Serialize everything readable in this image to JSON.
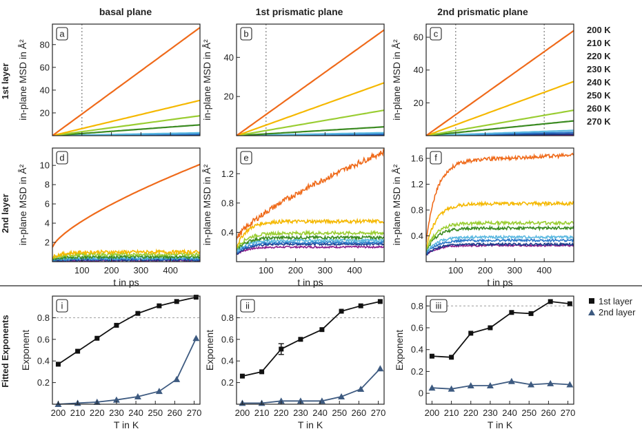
{
  "figure": {
    "column_titles": [
      "basal plane",
      "1st prismatic plane",
      "2nd prismatic plane"
    ],
    "row_labels": [
      "1st layer",
      "2nd layer",
      "Fitted Exponents"
    ],
    "temperature_legend": [
      {
        "label": "200 K",
        "color": "#8b1a8b"
      },
      {
        "label": "210 K",
        "color": "#1a3a8a"
      },
      {
        "label": "220 K",
        "color": "#2a76c8"
      },
      {
        "label": "230 K",
        "color": "#5ab8e0"
      },
      {
        "label": "240 K",
        "color": "#3a8a20"
      },
      {
        "label": "250 K",
        "color": "#9acd32"
      },
      {
        "label": "260 K",
        "color": "#f5b800"
      },
      {
        "label": "270 K",
        "color": "#ef6a1a"
      }
    ],
    "fit_legend": [
      {
        "label": "1st layer",
        "marker": "square",
        "color": "#111111"
      },
      {
        "label": "2nd layer",
        "marker": "triangle",
        "color": "#3d5a80"
      }
    ]
  },
  "chart_data": [
    {
      "id": "a",
      "type": "line",
      "panel_label": "a",
      "xlabel": "",
      "ylabel": "in-plane MSD in Å²",
      "xlim": [
        0,
        500
      ],
      "ylim": [
        0,
        98
      ],
      "xticks": [],
      "yticks": [
        20,
        40,
        60,
        80
      ],
      "vlines": [
        100
      ],
      "series": [
        {
          "name": "200 K",
          "shape": "lin",
          "end": 0.4
        },
        {
          "name": "210 K",
          "shape": "lin",
          "end": 0.8
        },
        {
          "name": "220 K",
          "shape": "lin",
          "end": 1.4
        },
        {
          "name": "230 K",
          "shape": "lin",
          "end": 2.5
        },
        {
          "name": "240 K",
          "shape": "lin",
          "end": 9.5
        },
        {
          "name": "250 K",
          "shape": "lin",
          "end": 17.5
        },
        {
          "name": "260 K",
          "shape": "lin",
          "end": 31
        },
        {
          "name": "270 K",
          "shape": "lin",
          "end": 95
        }
      ]
    },
    {
      "id": "b",
      "type": "line",
      "panel_label": "b",
      "xlabel": "",
      "ylabel": "in-plane MSD in Å²",
      "xlim": [
        0,
        500
      ],
      "ylim": [
        0,
        57
      ],
      "xticks": [],
      "yticks": [
        20,
        40
      ],
      "vlines": [
        100
      ],
      "series": [
        {
          "name": "200 K",
          "shape": "lin",
          "end": 0.3
        },
        {
          "name": "210 K",
          "shape": "lin",
          "end": 0.5
        },
        {
          "name": "220 K",
          "shape": "lin",
          "end": 0.9
        },
        {
          "name": "230 K",
          "shape": "lin",
          "end": 1.5
        },
        {
          "name": "240 K",
          "shape": "lin",
          "end": 4.5
        },
        {
          "name": "250 K",
          "shape": "lin",
          "end": 13
        },
        {
          "name": "260 K",
          "shape": "lin",
          "end": 27
        },
        {
          "name": "270 K",
          "shape": "lin",
          "end": 54
        }
      ]
    },
    {
      "id": "c",
      "type": "line",
      "panel_label": "c",
      "xlabel": "",
      "ylabel": "in-plane MSD in Å²",
      "xlim": [
        0,
        500
      ],
      "ylim": [
        0,
        68
      ],
      "xticks": [],
      "yticks": [
        20,
        40,
        60
      ],
      "vlines": [
        100,
        400
      ],
      "series": [
        {
          "name": "200 K",
          "shape": "lin",
          "end": 0.6
        },
        {
          "name": "210 K",
          "shape": "lin",
          "end": 1.0
        },
        {
          "name": "220 K",
          "shape": "lin",
          "end": 2.0
        },
        {
          "name": "230 K",
          "shape": "lin",
          "end": 3.2
        },
        {
          "name": "240 K",
          "shape": "lin",
          "end": 9
        },
        {
          "name": "250 K",
          "shape": "lin",
          "end": 15.5
        },
        {
          "name": "260 K",
          "shape": "lin",
          "end": 33
        },
        {
          "name": "270 K",
          "shape": "lin",
          "end": 64
        }
      ]
    },
    {
      "id": "d",
      "type": "line",
      "panel_label": "d",
      "xlabel": "t in ps",
      "ylabel": "in-plane MSD in Å²",
      "xlim": [
        0,
        500
      ],
      "ylim": [
        0,
        11.8
      ],
      "xticks": [
        100,
        200,
        300,
        400
      ],
      "yticks": [
        2,
        4,
        6,
        8,
        10
      ],
      "vlines": [],
      "series": [
        {
          "name": "200 K",
          "shape": "sat",
          "start": 0.05,
          "end": 0.12
        },
        {
          "name": "210 K",
          "shape": "sat",
          "start": 0.08,
          "end": 0.18
        },
        {
          "name": "220 K",
          "shape": "sat",
          "start": 0.12,
          "end": 0.28
        },
        {
          "name": "230 K",
          "shape": "sat",
          "start": 0.18,
          "end": 0.38
        },
        {
          "name": "240 K",
          "shape": "sat",
          "start": 0.25,
          "end": 0.5
        },
        {
          "name": "250 K",
          "shape": "sat",
          "start": 0.35,
          "end": 0.75
        },
        {
          "name": "260 K",
          "shape": "sat",
          "start": 0.45,
          "end": 1.0
        },
        {
          "name": "270 K",
          "shape": "pow",
          "start": 1.5,
          "end": 10.1
        }
      ]
    },
    {
      "id": "e",
      "type": "line",
      "panel_label": "e",
      "xlabel": "t in ps",
      "ylabel": "in-plane MSD in Å²",
      "xlim": [
        0,
        500
      ],
      "ylim": [
        0,
        1.55
      ],
      "xticks": [
        100,
        200,
        300,
        400
      ],
      "yticks": [
        0.4,
        0.8,
        1.2
      ],
      "vlines": [],
      "series": [
        {
          "name": "200 K",
          "shape": "sat",
          "start": 0.1,
          "end": 0.2
        },
        {
          "name": "210 K",
          "shape": "sat",
          "start": 0.1,
          "end": 0.24
        },
        {
          "name": "220 K",
          "shape": "sat",
          "start": 0.12,
          "end": 0.26
        },
        {
          "name": "230 K",
          "shape": "sat",
          "start": 0.14,
          "end": 0.29
        },
        {
          "name": "240 K",
          "shape": "sat",
          "start": 0.16,
          "end": 0.33
        },
        {
          "name": "250 K",
          "shape": "sat",
          "start": 0.18,
          "end": 0.39
        },
        {
          "name": "260 K",
          "shape": "sat",
          "start": 0.2,
          "end": 0.55
        },
        {
          "name": "270 K",
          "shape": "pow",
          "start": 0.3,
          "end": 1.5
        }
      ]
    },
    {
      "id": "f",
      "type": "line",
      "panel_label": "f",
      "xlabel": "t in ps",
      "ylabel": "in-plane MSD in Å²",
      "xlim": [
        0,
        500
      ],
      "ylim": [
        0,
        1.76
      ],
      "xticks": [
        100,
        200,
        300,
        400
      ],
      "yticks": [
        0.4,
        0.8,
        1.2,
        1.6
      ],
      "vlines": [],
      "series": [
        {
          "name": "200 K",
          "shape": "sat",
          "start": 0.1,
          "end": 0.25
        },
        {
          "name": "210 K",
          "shape": "sat",
          "start": 0.1,
          "end": 0.27
        },
        {
          "name": "220 K",
          "shape": "sat",
          "start": 0.12,
          "end": 0.33
        },
        {
          "name": "230 K",
          "shape": "sat",
          "start": 0.14,
          "end": 0.38
        },
        {
          "name": "240 K",
          "shape": "sat",
          "start": 0.16,
          "end": 0.52
        },
        {
          "name": "250 K",
          "shape": "sat",
          "start": 0.18,
          "end": 0.6
        },
        {
          "name": "260 K",
          "shape": "sat",
          "start": 0.22,
          "end": 0.9
        },
        {
          "name": "270 K",
          "shape": "sat",
          "start": 0.3,
          "end": 1.55,
          "tail": 0.1
        }
      ]
    },
    {
      "id": "i",
      "type": "line",
      "panel_label": "i",
      "xlabel": "T in K",
      "ylabel": "Exponent",
      "xlim": [
        197,
        273
      ],
      "ylim": [
        0,
        1.0
      ],
      "xticks": [
        200,
        210,
        220,
        230,
        240,
        250,
        260,
        270
      ],
      "yticks": [
        0.2,
        0.4,
        0.6,
        0.8
      ],
      "hline": 0.8,
      "series": [
        {
          "name": "1st layer",
          "x": [
            200,
            210,
            220,
            230,
            241,
            252,
            261,
            271
          ],
          "y": [
            0.37,
            0.49,
            0.61,
            0.73,
            0.84,
            0.91,
            0.95,
            0.99
          ]
        },
        {
          "name": "2nd layer",
          "x": [
            200,
            210,
            220,
            230,
            241,
            252,
            261,
            271
          ],
          "y": [
            0.0,
            0.01,
            0.02,
            0.04,
            0.07,
            0.12,
            0.23,
            0.61
          ]
        }
      ]
    },
    {
      "id": "ii",
      "type": "line",
      "panel_label": "ii",
      "xlabel": "T in K",
      "ylabel": "Exponent",
      "xlim": [
        197,
        273
      ],
      "ylim": [
        0,
        1.0
      ],
      "xticks": [
        200,
        210,
        220,
        230,
        240,
        250,
        260,
        270
      ],
      "yticks": [
        0.2,
        0.4,
        0.6,
        0.8
      ],
      "hline": 0.8,
      "series": [
        {
          "name": "1st layer",
          "x": [
            200,
            210,
            220,
            230,
            241,
            251,
            261,
            271
          ],
          "y": [
            0.26,
            0.3,
            0.51,
            0.6,
            0.69,
            0.86,
            0.91,
            0.95
          ],
          "err": [
            0,
            0,
            0.05,
            0,
            0,
            0,
            0,
            0
          ]
        },
        {
          "name": "2nd layer",
          "x": [
            200,
            210,
            220,
            230,
            241,
            251,
            261,
            271
          ],
          "y": [
            0.01,
            0.01,
            0.03,
            0.03,
            0.03,
            0.07,
            0.14,
            0.33
          ]
        }
      ]
    },
    {
      "id": "iii",
      "type": "line",
      "panel_label": "iii",
      "xlabel": "T in K",
      "ylabel": "Exponent",
      "xlim": [
        197,
        273
      ],
      "ylim": [
        -0.1,
        0.89
      ],
      "xticks": [
        200,
        210,
        220,
        230,
        240,
        250,
        260,
        270
      ],
      "yticks": [
        0,
        0.2,
        0.4,
        0.6,
        0.8
      ],
      "hline": 0.8,
      "series": [
        {
          "name": "1st layer",
          "x": [
            200,
            210,
            220,
            230,
            241,
            251,
            261,
            271
          ],
          "y": [
            0.34,
            0.33,
            0.55,
            0.6,
            0.74,
            0.73,
            0.84,
            0.82
          ]
        },
        {
          "name": "2nd layer",
          "x": [
            200,
            210,
            220,
            230,
            241,
            251,
            261,
            271
          ],
          "y": [
            0.05,
            0.04,
            0.07,
            0.07,
            0.11,
            0.08,
            0.09,
            0.08
          ]
        }
      ]
    }
  ]
}
